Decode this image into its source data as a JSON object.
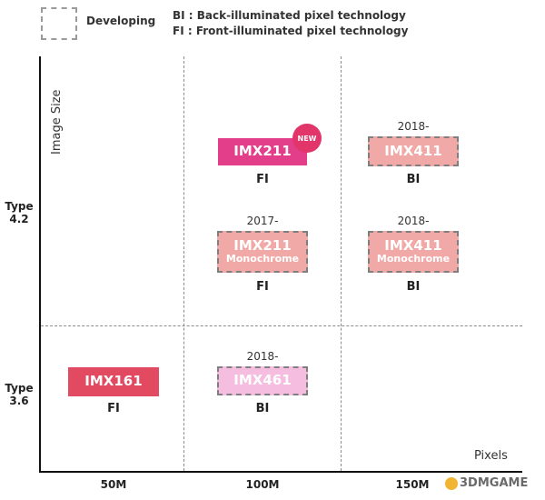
{
  "legend": {
    "developing": "Developing",
    "bi": "BI : Back-illuminated pixel technology",
    "fi": "FI : Front-illuminated pixel technology"
  },
  "axes": {
    "y_title": "Image Size",
    "x_title": "Pixels",
    "y_categories": [
      {
        "line1": "Type",
        "line2": "4.2"
      },
      {
        "line1": "Type",
        "line2": "3.6"
      }
    ],
    "x_categories": [
      "50M",
      "100M",
      "150M"
    ]
  },
  "sensors": [
    {
      "name": "IMX211",
      "sub": "",
      "tech": "FI",
      "year": "",
      "status": "current",
      "badge": "NEW"
    },
    {
      "name": "IMX411",
      "sub": "",
      "tech": "BI",
      "year": "2018-",
      "status": "developing"
    },
    {
      "name": "IMX211",
      "sub": "Monochrome",
      "tech": "FI",
      "year": "2017-",
      "status": "developing"
    },
    {
      "name": "IMX411",
      "sub": "Monochrome",
      "tech": "BI",
      "year": "2018-",
      "status": "developing"
    },
    {
      "name": "IMX161",
      "sub": "",
      "tech": "FI",
      "year": "",
      "status": "current"
    },
    {
      "name": "IMX461",
      "sub": "",
      "tech": "BI",
      "year": "2018-",
      "status": "developing"
    }
  ],
  "colors": {
    "current_magenta": "#e23e8a",
    "current_red": "#e24a62",
    "developing_salmon": "#f0a9a6",
    "developing_pink": "#f5bde0",
    "new_badge": "#e2356a"
  },
  "watermark": "3DMGAME"
}
